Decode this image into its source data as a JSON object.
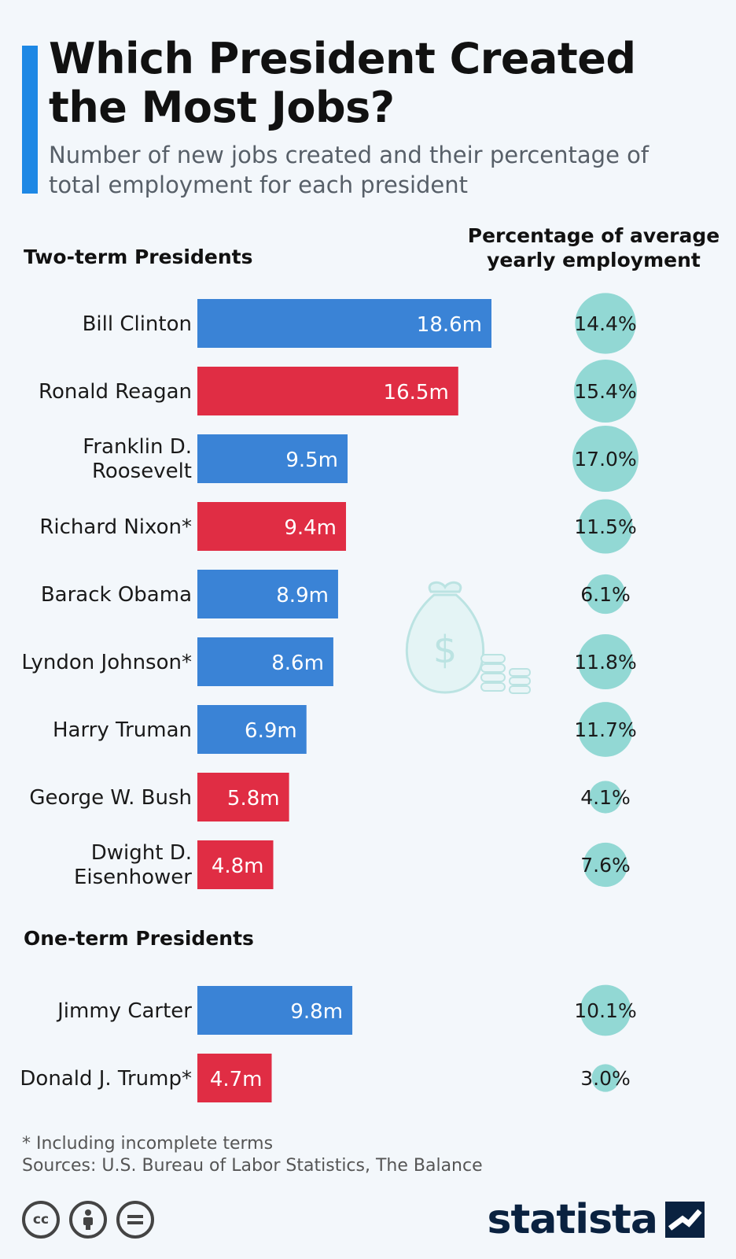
{
  "header": {
    "title": "Which President Created the Most Jobs?",
    "subtitle": "Number of new jobs created and their percentage of total employment for each president"
  },
  "column_header": "Percentage of average yearly employment",
  "sections": [
    {
      "label": "Two-term Presidents"
    },
    {
      "label": "One-term Presidents"
    }
  ],
  "colors": {
    "democrat": "#3a83d6",
    "republican": "#e02d44",
    "bubble": "#92d8d4",
    "accent": "#1e88e5"
  },
  "chart_data": {
    "type": "bar",
    "orientation": "horizontal",
    "unit": "m",
    "groups": [
      {
        "name": "Two-term Presidents",
        "rows": [
          {
            "president": "Bill Clinton",
            "jobs": 18.6,
            "jobs_label": "18.6m",
            "pct": 14.4,
            "pct_label": "14.4%",
            "party": "democrat"
          },
          {
            "president": "Ronald Reagan",
            "jobs": 16.5,
            "jobs_label": "16.5m",
            "pct": 15.4,
            "pct_label": "15.4%",
            "party": "republican"
          },
          {
            "president": "Franklin D. Roosevelt",
            "jobs": 9.5,
            "jobs_label": "9.5m",
            "pct": 17.0,
            "pct_label": "17.0%",
            "party": "democrat"
          },
          {
            "president": "Richard Nixon*",
            "jobs": 9.4,
            "jobs_label": "9.4m",
            "pct": 11.5,
            "pct_label": "11.5%",
            "party": "republican"
          },
          {
            "president": "Barack Obama",
            "jobs": 8.9,
            "jobs_label": "8.9m",
            "pct": 6.1,
            "pct_label": "6.1%",
            "party": "democrat"
          },
          {
            "president": "Lyndon Johnson*",
            "jobs": 8.6,
            "jobs_label": "8.6m",
            "pct": 11.8,
            "pct_label": "11.8%",
            "party": "democrat"
          },
          {
            "president": "Harry Truman",
            "jobs": 6.9,
            "jobs_label": "6.9m",
            "pct": 11.7,
            "pct_label": "11.7%",
            "party": "democrat"
          },
          {
            "president": "George W. Bush",
            "jobs": 5.8,
            "jobs_label": "5.8m",
            "pct": 4.1,
            "pct_label": "4.1%",
            "party": "republican"
          },
          {
            "president": "Dwight D. Eisenhower",
            "jobs": 4.8,
            "jobs_label": "4.8m",
            "pct": 7.6,
            "pct_label": "7.6%",
            "party": "republican"
          }
        ]
      },
      {
        "name": "One-term Presidents",
        "rows": [
          {
            "president": "Jimmy Carter",
            "jobs": 9.8,
            "jobs_label": "9.8m",
            "pct": 10.1,
            "pct_label": "10.1%",
            "party": "democrat"
          },
          {
            "president": "Donald J. Trump*",
            "jobs": 4.7,
            "jobs_label": "4.7m",
            "pct": 3.0,
            "pct_label": "3.0%",
            "party": "republican"
          }
        ]
      }
    ]
  },
  "footer": {
    "footnote": "* Including incomplete terms",
    "source": "Sources: U.S. Bureau of Labor Statistics, The Balance",
    "license_icons": [
      "creative-commons-icon",
      "attribution-icon",
      "no-derivatives-icon"
    ],
    "brand": "statista"
  }
}
